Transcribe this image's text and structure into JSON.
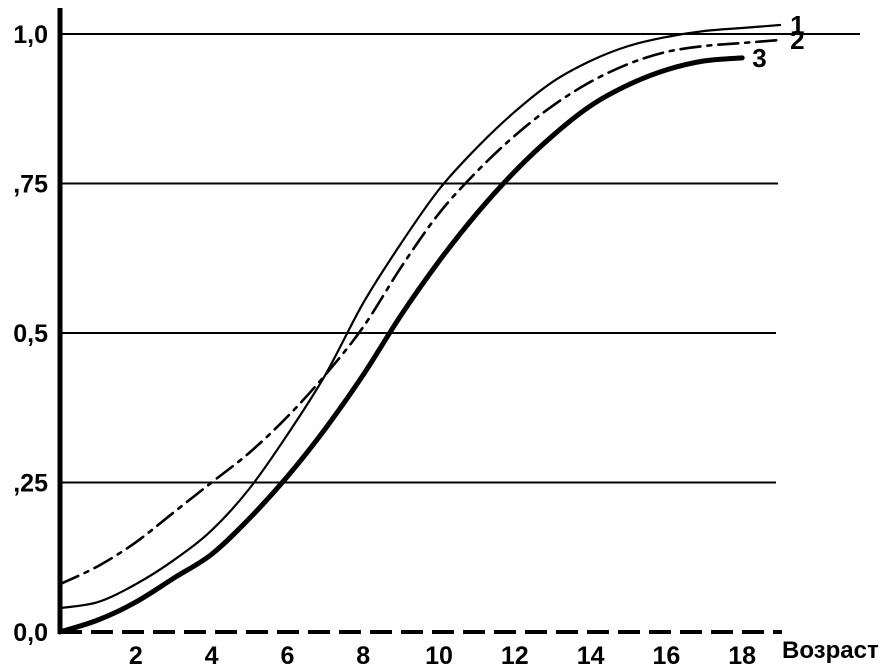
{
  "chart_data": {
    "type": "line",
    "title": "",
    "xlabel": "Возраст",
    "ylabel": "",
    "xlim": [
      0,
      19
    ],
    "ylim": [
      0,
      1
    ],
    "grid": "horizontal",
    "x_ticks": [
      "2",
      "4",
      "6",
      "8",
      "10",
      "12",
      "14",
      "16",
      "18"
    ],
    "y_ticks": [
      "0,0",
      ",25",
      "0,5",
      ",75",
      "1,0"
    ],
    "x_tick_values": [
      2,
      4,
      6,
      8,
      10,
      12,
      14,
      16,
      18
    ],
    "y_tick_values": [
      0,
      0.25,
      0.5,
      0.75,
      1.0
    ],
    "series": [
      {
        "name": "1",
        "style": "thin-solid",
        "points": [
          [
            0,
            0.04
          ],
          [
            1,
            0.05
          ],
          [
            2,
            0.08
          ],
          [
            3,
            0.12
          ],
          [
            4,
            0.17
          ],
          [
            5,
            0.24
          ],
          [
            6,
            0.33
          ],
          [
            7,
            0.43
          ],
          [
            8,
            0.55
          ],
          [
            9,
            0.65
          ],
          [
            10,
            0.74
          ],
          [
            11,
            0.81
          ],
          [
            12,
            0.87
          ],
          [
            13,
            0.92
          ],
          [
            14,
            0.955
          ],
          [
            15,
            0.98
          ],
          [
            16,
            0.995
          ],
          [
            17,
            1.005
          ],
          [
            18,
            1.01
          ],
          [
            19,
            1.015
          ]
        ]
      },
      {
        "name": "2",
        "style": "dash-dot",
        "points": [
          [
            0,
            0.08
          ],
          [
            1,
            0.11
          ],
          [
            2,
            0.15
          ],
          [
            3,
            0.2
          ],
          [
            4,
            0.25
          ],
          [
            5,
            0.3
          ],
          [
            6,
            0.36
          ],
          [
            7,
            0.43
          ],
          [
            8,
            0.51
          ],
          [
            9,
            0.61
          ],
          [
            10,
            0.7
          ],
          [
            11,
            0.77
          ],
          [
            12,
            0.83
          ],
          [
            13,
            0.88
          ],
          [
            14,
            0.92
          ],
          [
            15,
            0.95
          ],
          [
            16,
            0.97
          ],
          [
            17,
            0.98
          ],
          [
            18,
            0.985
          ],
          [
            19,
            0.99
          ]
        ]
      },
      {
        "name": "3",
        "style": "thick-solid",
        "points": [
          [
            0,
            0.0
          ],
          [
            1,
            0.02
          ],
          [
            2,
            0.05
          ],
          [
            3,
            0.09
          ],
          [
            4,
            0.13
          ],
          [
            5,
            0.19
          ],
          [
            6,
            0.26
          ],
          [
            7,
            0.34
          ],
          [
            8,
            0.43
          ],
          [
            9,
            0.53
          ],
          [
            10,
            0.62
          ],
          [
            11,
            0.7
          ],
          [
            12,
            0.77
          ],
          [
            13,
            0.83
          ],
          [
            14,
            0.88
          ],
          [
            15,
            0.915
          ],
          [
            16,
            0.94
          ],
          [
            17,
            0.955
          ],
          [
            18,
            0.96
          ]
        ]
      }
    ]
  }
}
